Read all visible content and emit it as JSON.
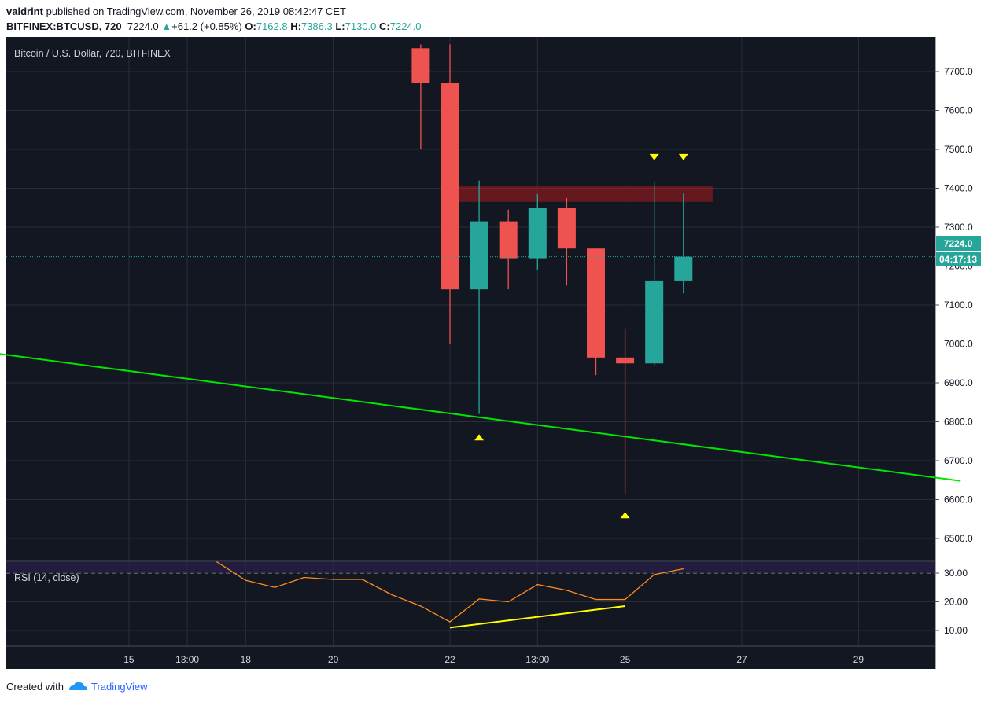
{
  "header": {
    "author": "valdrint",
    "published_text": "published on TradingView.com, November 26, 2019 08:42:47 CET",
    "symbol": "BITFINEX:BTCUSD, 720",
    "last": "7224.0",
    "arrow": "▲",
    "change": "+61.2 (+0.85%)",
    "open_label": "O:",
    "open": "7162.8",
    "high_label": "H:",
    "high": "7386.3",
    "low_label": "L:",
    "low": "7130.0",
    "close_label": "C:",
    "close": "7224.0"
  },
  "chart": {
    "title": "Bitcoin / U.S. Dollar, 720, BITFINEX",
    "price_label": "7224.0",
    "countdown": "04:17:13",
    "colors": {
      "up": "#26a69a",
      "down": "#ef5350",
      "background": "#131722",
      "grid": "#2a2e39",
      "trendline": "#00e600",
      "rsi": "#ff8c1a",
      "rsi_trend": "#ffff00",
      "markers": "#ffff00",
      "resistance": "#b71c1c"
    }
  },
  "rsi_panel": {
    "label": "RSI (14, close)"
  },
  "footer": {
    "created": "Created with",
    "brand": "TradingView"
  },
  "chart_data": {
    "type": "candlestick",
    "title": "Bitcoin / U.S. Dollar, 720, BITFINEX",
    "price_axis": {
      "ticks": [
        "7700.0",
        "7600.0",
        "7500.0",
        "7400.0",
        "7300.0",
        "7200.0",
        "7100.0",
        "7000.0",
        "6900.0",
        "6800.0",
        "6700.0",
        "6600.0",
        "6500.0"
      ],
      "range": [
        6420,
        7770
      ]
    },
    "time_axis": {
      "ticks": [
        "15",
        "13:00",
        "18",
        "20",
        "22",
        "13:00",
        "25",
        "27",
        "29"
      ],
      "tick_index": [
        -11,
        -9,
        -7,
        -4,
        0,
        3,
        6,
        10,
        14
      ]
    },
    "candles": [
      {
        "i": -1,
        "open": 7760,
        "high": 7770,
        "low": 7500,
        "close": 7670
      },
      {
        "i": 0,
        "open": 7670,
        "high": 7770,
        "low": 7000,
        "close": 7140
      },
      {
        "i": 1,
        "open": 7140,
        "high": 7420,
        "low": 6820,
        "close": 7315
      },
      {
        "i": 2,
        "open": 7315,
        "high": 7345,
        "low": 7140,
        "close": 7220
      },
      {
        "i": 3,
        "open": 7220,
        "high": 7385,
        "low": 7190,
        "close": 7350
      },
      {
        "i": 4,
        "open": 7350,
        "high": 7375,
        "low": 7150,
        "close": 7245
      },
      {
        "i": 5,
        "open": 7245,
        "high": 7245,
        "low": 6920,
        "close": 6965
      },
      {
        "i": 6,
        "open": 6965,
        "high": 7040,
        "low": 6615,
        "close": 6950
      },
      {
        "i": 7,
        "open": 6950,
        "high": 7415,
        "low": 6945,
        "close": 7162.8
      },
      {
        "i": 8,
        "open": 7162.8,
        "high": 7386.3,
        "low": 7130,
        "close": 7224
      }
    ],
    "current_price": 7224.0,
    "resistance_zone": {
      "from_index": 0,
      "to_index": 9,
      "low": 7365,
      "high": 7405
    },
    "trendline": {
      "points": [
        [
          -15.5,
          6975
        ],
        [
          17.5,
          6648
        ]
      ]
    },
    "markers": [
      {
        "i": 1,
        "price": 6760,
        "direction": "up"
      },
      {
        "i": 6,
        "price": 6560,
        "direction": "up"
      },
      {
        "i": 7,
        "price": 7480,
        "direction": "down"
      },
      {
        "i": 8,
        "price": 7480,
        "direction": "down"
      }
    ],
    "rsi": {
      "ticks": [
        "30.00",
        "20.00",
        "10.00"
      ],
      "range": [
        5,
        35
      ],
      "level": 30,
      "series": [
        [
          -8,
          34
        ],
        [
          -7,
          27.5
        ],
        [
          -6,
          25
        ],
        [
          -5,
          28.5
        ],
        [
          -4,
          27.8
        ],
        [
          -3,
          27.8
        ],
        [
          -2,
          22.5
        ],
        [
          -1,
          18.5
        ],
        [
          0,
          13
        ],
        [
          1,
          21
        ],
        [
          2,
          20
        ],
        [
          3,
          26
        ],
        [
          4,
          24
        ],
        [
          5,
          20.8
        ],
        [
          6,
          20.8
        ],
        [
          7,
          29.5
        ],
        [
          8,
          31.5
        ]
      ],
      "trendline": {
        "points": [
          [
            0,
            11
          ],
          [
            6,
            18.5
          ]
        ]
      }
    }
  }
}
